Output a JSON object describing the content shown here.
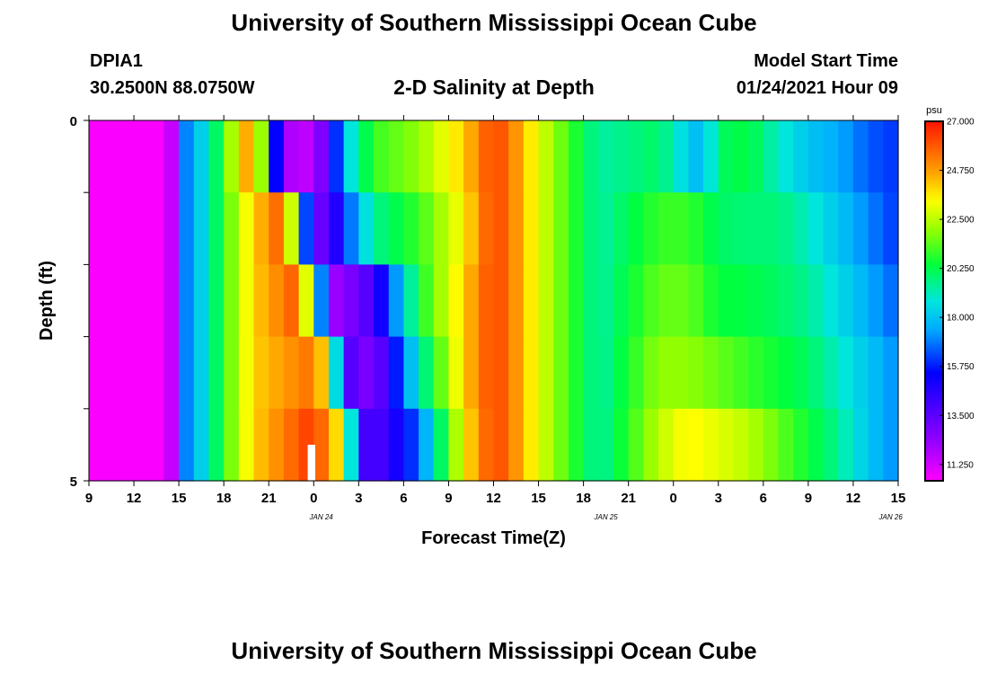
{
  "header": {
    "title": "University of Southern Mississippi Ocean Cube",
    "station": "DPIA1",
    "coords": "30.2500N 88.0750W",
    "subtitle": "2-D Salinity at Depth",
    "model_start_label": "Model Start Time",
    "model_start_value": "01/24/2021 Hour 09"
  },
  "footer": {
    "title": "University of Southern Mississippi Ocean Cube"
  },
  "chart_data": {
    "type": "heatmap",
    "title": "2-D Salinity at Depth",
    "xlabel": "Forecast Time(Z)",
    "ylabel": "Depth (ft)",
    "x_ticks": [
      "9",
      "12",
      "15",
      "18",
      "21",
      "0",
      "3",
      "6",
      "9",
      "12",
      "15",
      "18",
      "21",
      "0",
      "3",
      "6",
      "9",
      "12",
      "15"
    ],
    "date_labels": [
      {
        "text": "JAN 24",
        "hour": 15.5
      },
      {
        "text": "JAN 25",
        "hour": 34.5
      },
      {
        "text": "JAN 26",
        "hour": 53.5
      }
    ],
    "y_ticks": [
      "0",
      "5"
    ],
    "ylim": [
      0,
      5
    ],
    "xlim_hours": [
      0,
      54
    ],
    "colorbar": {
      "unit": "psu",
      "min": 10.5,
      "max": 27.0,
      "tick_labels": [
        "27.000",
        "24.750",
        "22.500",
        "20.250",
        "18.000",
        "15.750",
        "13.500",
        "11.250"
      ],
      "tick_values": [
        27.0,
        24.75,
        22.5,
        20.25,
        18.0,
        15.75,
        13.5,
        11.25
      ]
    },
    "depth_rows": [
      0.5,
      1.5,
      2.5,
      3.5,
      4.5
    ],
    "series": [
      {
        "hours": [
          0,
          5,
          5.5,
          6,
          6.5,
          7,
          8,
          9,
          10,
          11,
          13,
          15,
          16,
          17,
          19,
          22,
          25,
          27,
          28,
          30,
          34,
          38,
          40,
          41,
          42,
          44,
          46,
          48,
          50,
          52,
          54
        ],
        "values": [
          10.6,
          10.6,
          11.5,
          13.5,
          17,
          17.5,
          19,
          21,
          23.5,
          25.5,
          12,
          11.5,
          14,
          18,
          21,
          22,
          24,
          26.3,
          25.5,
          23,
          19.3,
          20,
          18.2,
          17.6,
          20,
          20.4,
          19,
          18,
          17.5,
          16.5,
          16
        ]
      },
      {
        "hours": [
          0,
          5,
          5.5,
          6,
          6.5,
          7,
          8,
          9,
          11,
          13,
          15,
          16,
          17,
          19,
          22,
          25,
          27,
          28,
          30,
          34,
          38,
          40,
          42,
          44,
          46,
          48,
          50,
          52,
          54
        ],
        "values": [
          10.6,
          10.6,
          11.5,
          13.5,
          17,
          17.5,
          19,
          21,
          24,
          26,
          13,
          13.5,
          16,
          19.5,
          21,
          23.5,
          26.3,
          25.5,
          23,
          19.3,
          21,
          21,
          20,
          19.8,
          19.8,
          19,
          18,
          17,
          16
        ]
      },
      {
        "hours": [
          0,
          5,
          5.5,
          6,
          6.5,
          7,
          8,
          9,
          11,
          14,
          15.5,
          16,
          17,
          19,
          22,
          25,
          27,
          28,
          30,
          34,
          38,
          40,
          42,
          44,
          46,
          48,
          50,
          52,
          54
        ],
        "values": [
          10.6,
          10.6,
          11.5,
          13.5,
          17,
          17.5,
          19,
          21,
          24,
          26,
          17,
          12,
          12.5,
          14,
          20.5,
          24,
          26.3,
          25.5,
          23,
          19.3,
          21.5,
          21.5,
          20.4,
          20.3,
          20,
          19.5,
          18.5,
          17.5,
          16.5
        ]
      },
      {
        "hours": [
          0,
          5,
          5.5,
          6,
          6.5,
          7,
          8,
          9,
          11,
          15,
          16,
          17,
          19,
          22,
          25,
          27,
          28,
          30,
          34,
          38,
          40,
          42,
          44,
          46,
          48,
          50,
          52,
          54
        ],
        "values": [
          10.6,
          10.6,
          11.5,
          13.5,
          17,
          17.5,
          19,
          21,
          24,
          25.5,
          23,
          14,
          12.5,
          19,
          24,
          26.3,
          25.5,
          23,
          19.3,
          22,
          22,
          21.5,
          21,
          20.5,
          20,
          19,
          18,
          17
        ]
      },
      {
        "hours": [
          0,
          5,
          5.5,
          6,
          6.5,
          7,
          8,
          9,
          11,
          15,
          17,
          18,
          19,
          22,
          25,
          27,
          28,
          30,
          34,
          38,
          40,
          42,
          44,
          46,
          48,
          50,
          52,
          54
        ],
        "values": [
          10.6,
          10.6,
          11.5,
          13.5,
          17,
          17.5,
          19,
          21,
          24,
          26.5,
          23,
          14.5,
          13.5,
          16.5,
          23.5,
          26.3,
          25.5,
          23,
          19.3,
          22.5,
          23.5,
          23,
          22.5,
          21.5,
          20.5,
          19.5,
          18,
          17
        ]
      }
    ]
  }
}
